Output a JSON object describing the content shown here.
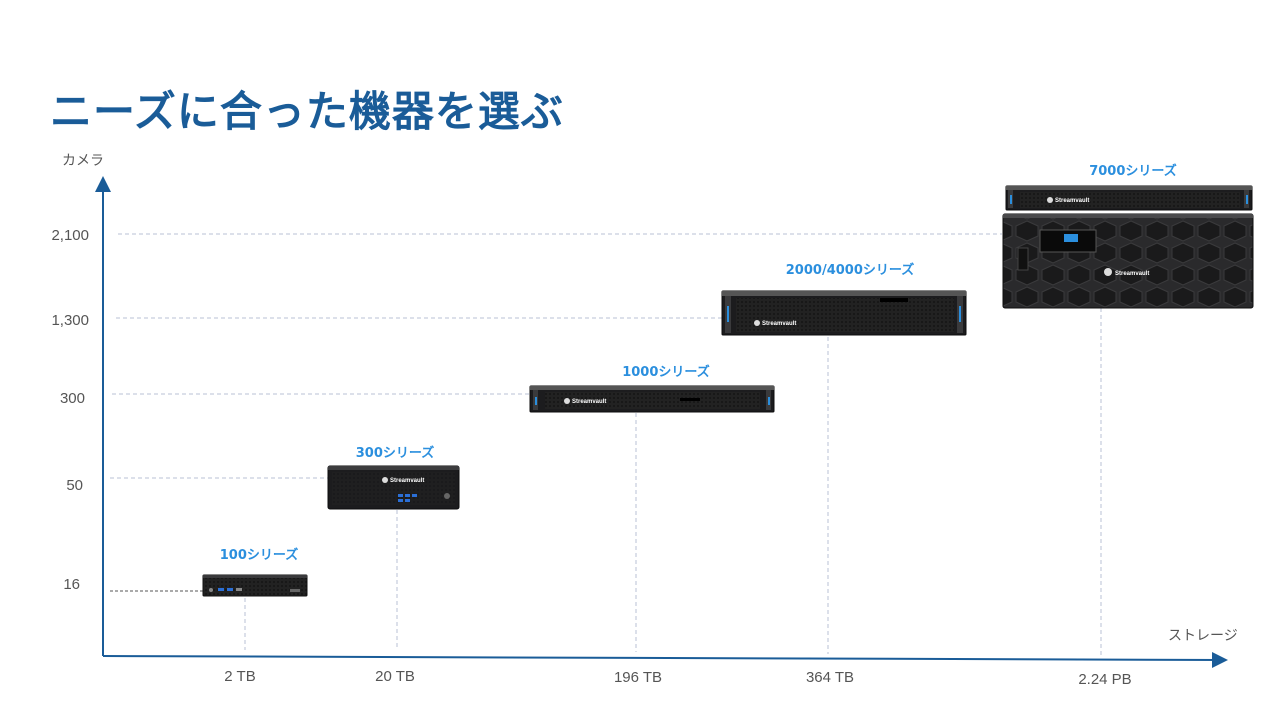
{
  "title": "ニーズに合った機器を選ぶ",
  "axes": {
    "y_label": "カメラ",
    "x_label": "ストレージ"
  },
  "chart_data": {
    "type": "scatter",
    "series_labels_note": "each point labeled with series name",
    "y_ticks": [
      "16",
      "50",
      "300",
      "1,300",
      "2,100"
    ],
    "x_ticks": [
      "2 TB",
      "20 TB",
      "196 TB",
      "364 TB",
      "2.24 PB"
    ],
    "points": [
      {
        "label": "100シリーズ",
        "storage": "2 TB",
        "cameras": "16"
      },
      {
        "label": "300シリーズ",
        "storage": "20 TB",
        "cameras": "50"
      },
      {
        "label": "1000シリーズ",
        "storage": "196 TB",
        "cameras": "300"
      },
      {
        "label": "2000/4000シリーズ",
        "storage": "364 TB",
        "cameras": "1,300"
      },
      {
        "label": "7000シリーズ",
        "storage": "2.24 PB",
        "cameras": "2,100"
      }
    ],
    "grid": "dashed guide lines from each point to axes"
  },
  "brand": "Streamvault",
  "colors": {
    "title": "#1a5c98",
    "axis": "#1a5c98",
    "series_label": "#2b8fde",
    "guide": "#b8c2d6",
    "device": "#1c1c1e"
  }
}
